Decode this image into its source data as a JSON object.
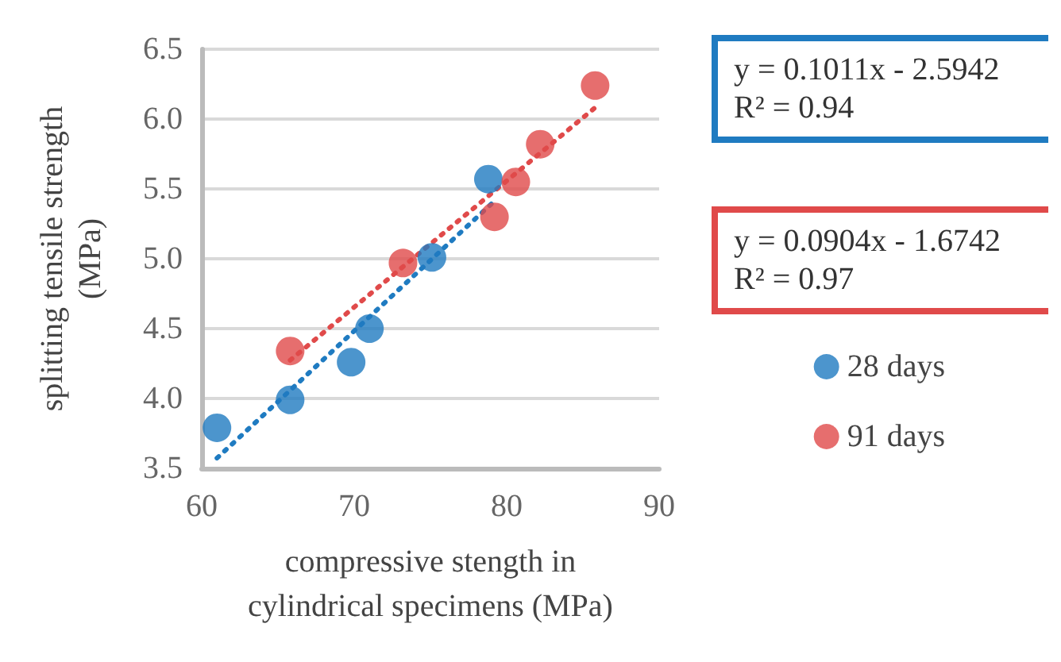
{
  "chart_data": {
    "type": "scatter",
    "xlabel": "compressive stength in\ncylindrical specimens (MPa)",
    "ylabel": "splitting tensile strength\n(MPa)",
    "xlim": [
      60,
      90
    ],
    "xticks": [
      60,
      70,
      80,
      90
    ],
    "ylim": [
      3.5,
      6.5
    ],
    "yticks": [
      {
        "value": 3.5,
        "label": "3.5"
      },
      {
        "value": 4,
        "label": "4.0"
      },
      {
        "value": 4.5,
        "label": "4.5"
      },
      {
        "value": 5,
        "label": "5.0"
      },
      {
        "value": 5.5,
        "label": "5.5"
      },
      {
        "value": 6,
        "label": "6.0"
      },
      {
        "value": 6.5,
        "label": "6.5"
      }
    ],
    "grid": "y",
    "legend": "right",
    "marker": "circle",
    "annotations": [
      "y = 0.1011x - 2.5942\nR² = 0.94",
      "y = 0.0904x - 1.6742\nR² = 0.97"
    ],
    "series": [
      {
        "name": "28 days",
        "color": "#1f7bc1",
        "x": [
          61.0,
          65.8,
          69.8,
          71.0,
          75.1,
          78.8
        ],
        "values": [
          3.79,
          3.99,
          4.26,
          4.5,
          5.01,
          5.57
        ]
      },
      {
        "name": "91 days",
        "color": "#e04a4a",
        "x": [
          65.8,
          73.2,
          79.2,
          80.6,
          82.2,
          85.8
        ],
        "values": [
          4.34,
          4.97,
          5.3,
          5.55,
          5.82,
          6.24
        ]
      },
      {
        "type": "line",
        "line_style": "dotted",
        "marker": "none",
        "color": "#1f7bc1",
        "x": [
          61,
          79
        ],
        "values": [
          3.573,
          5.393
        ]
      },
      {
        "type": "line",
        "line_style": "dotted",
        "marker": "none",
        "color": "#e04a4a",
        "x": [
          65.8,
          86
        ],
        "values": [
          4.274,
          6.1
        ]
      }
    ]
  }
}
